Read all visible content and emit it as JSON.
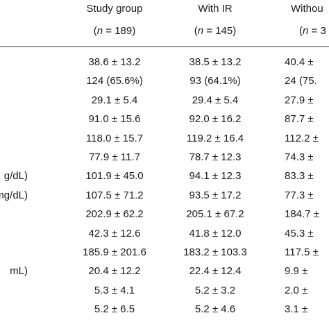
{
  "header": {
    "columns": [
      {
        "title": "Study group",
        "n_label": "n",
        "n_value": " = 189)"
      },
      {
        "title": "With IR",
        "n_label": "n",
        "n_value": " = 145)"
      },
      {
        "title": "Withou",
        "n_label": "n",
        "n_value": " = 3"
      }
    ]
  },
  "rows": [
    {
      "label": "",
      "values": [
        "38.6 ± 13.2",
        "38.5 ± 13.2",
        "40.4 ±"
      ]
    },
    {
      "label": "",
      "values": [
        "124 (65.6%)",
        "93 (64.1%)",
        "24 (75."
      ]
    },
    {
      "label": "",
      "values": [
        "29.1 ± 5.4",
        "29.4 ± 5.4",
        "27.9 ±"
      ]
    },
    {
      "label": "",
      "values": [
        "91.0 ± 15.6",
        "92.0 ± 16.2",
        "87.7 ±"
      ]
    },
    {
      "label": "",
      "values": [
        "118.0 ± 15.7",
        "119.2 ± 16.4",
        "112.2 ±"
      ]
    },
    {
      "label": "",
      "values": [
        "77.9 ± 11.7",
        "78.7 ± 12.3",
        "74.3 ±"
      ]
    },
    {
      "label": "g/dL)",
      "values": [
        "101.9 ± 45.0",
        "94.1 ± 12.3",
        "83.3 ±"
      ]
    },
    {
      "label": "mg/dL)",
      "values": [
        "107.5 ± 71.2",
        "93.5 ± 17.2",
        "77.3 ±"
      ]
    },
    {
      "label": "",
      "values": [
        "202.9 ± 62.2",
        "205.1 ± 67.2",
        "184.7 ±"
      ]
    },
    {
      "label": "",
      "values": [
        "42.3 ± 12.6",
        "41.8 ± 12.0",
        "45.3 ±"
      ]
    },
    {
      "label": "",
      "values": [
        "185.9 ± 201.6",
        "183.2 ± 103.3",
        "117.5 ±"
      ]
    },
    {
      "label": "mL)",
      "values": [
        "20.4 ± 12.2",
        "22.4 ± 12.4",
        "9.9 ±"
      ]
    },
    {
      "label": "",
      "values": [
        "5.3 ± 4.1",
        "5.2 ± 3.2",
        "2.0 ±"
      ]
    },
    {
      "label": "",
      "values": [
        "5.2 ± 6.5",
        "5.2 ± 4.6",
        "3.1 ±"
      ]
    }
  ]
}
